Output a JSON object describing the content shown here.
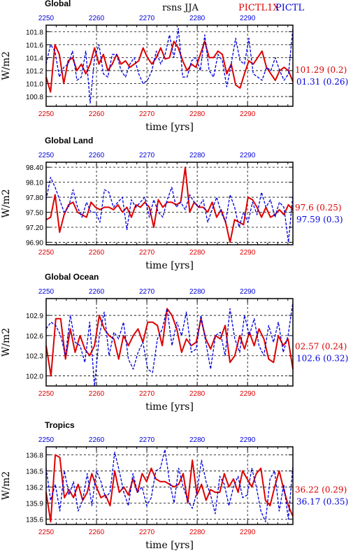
{
  "header": {
    "title": "rsns JJA",
    "legend_red": "PICTL1X",
    "legend_blue": "PICTL"
  },
  "colors": {
    "red": "#dd0000",
    "blue": "#0000dd",
    "grid": "#000000"
  },
  "chart_data": [
    {
      "type": "line",
      "title": "Global",
      "xlabel": "time [yrs]",
      "ylabel": "W/m2",
      "xlim": [
        2250,
        2299
      ],
      "ylim": [
        100.65,
        101.9
      ],
      "x_ticks": [
        2250,
        2260,
        2270,
        2280,
        2290
      ],
      "y_ticks": [
        "100.8",
        "101.0",
        "101.2",
        "101.4",
        "101.6",
        "101.8"
      ],
      "grid": "dashed",
      "stats_red": "101.29 (0.2)",
      "stats_blue": "01.31 (0.26)",
      "series": [
        {
          "name": "PICTL1X",
          "color": "red",
          "style": "solid",
          "values": [
            101.1,
            100.87,
            101.6,
            101.45,
            101.0,
            101.35,
            101.4,
            101.2,
            101.3,
            101.15,
            101.3,
            101.55,
            101.3,
            101.45,
            101.2,
            101.3,
            101.45,
            101.3,
            101.35,
            101.25,
            101.3,
            101.35,
            101.55,
            101.4,
            101.3,
            101.4,
            101.55,
            101.38,
            101.4,
            101.65,
            101.55,
            101.35,
            101.2,
            101.3,
            101.25,
            101.45,
            101.65,
            101.4,
            101.4,
            101.5,
            101.45,
            101.15,
            101.3,
            100.98,
            100.93,
            101.15,
            101.35,
            101.3,
            101.4,
            101.5,
            101.25,
            101.15,
            101.05,
            101.2,
            101.25,
            101.2,
            101.03
          ]
        },
        {
          "name": "PICTL",
          "color": "blue",
          "style": "dashed",
          "values": [
            101.3,
            101.6,
            101.5,
            101.1,
            101.25,
            101.3,
            101.5,
            101.05,
            101.1,
            101.5,
            100.7,
            101.4,
            101.6,
            101.15,
            101.1,
            101.45,
            101.45,
            101.2,
            101.1,
            101.3,
            101.4,
            101.15,
            101.0,
            101.05,
            101.2,
            101.5,
            101.3,
            101.45,
            101.75,
            101.4,
            101.85,
            101.1,
            101.1,
            101.35,
            101.4,
            101.2,
            101.75,
            101.2,
            101.1,
            101.45,
            101.35,
            100.95,
            101.3,
            101.7,
            101.35,
            101.3,
            101.7,
            101.15,
            101.1,
            101.05,
            101.25,
            101.2,
            101.4,
            101.2,
            101.05,
            101.15,
            101.85
          ]
        }
      ]
    },
    {
      "type": "line",
      "title": "Global Land",
      "xlabel": "time [yrs]",
      "ylabel": "W/m2",
      "xlim": [
        2250,
        2299
      ],
      "ylim": [
        96.85,
        98.5
      ],
      "x_ticks": [
        2250,
        2260,
        2270,
        2280,
        2290
      ],
      "y_ticks": [
        "96.90",
        "97.20",
        "97.50",
        "97.80",
        "98.10",
        "98.40"
      ],
      "grid": "dashed",
      "stats_red": "97.6 (0.25)",
      "stats_blue": "97.59 (0.3)",
      "series": [
        {
          "name": "PICTL1X",
          "color": "red",
          "style": "solid",
          "values": [
            97.35,
            97.4,
            97.85,
            97.1,
            97.45,
            97.65,
            97.7,
            97.5,
            97.45,
            97.4,
            97.7,
            97.6,
            97.55,
            97.6,
            97.6,
            97.55,
            97.65,
            97.5,
            97.6,
            97.4,
            97.65,
            97.6,
            97.7,
            97.6,
            97.2,
            97.75,
            97.6,
            97.7,
            97.7,
            97.65,
            97.7,
            98.4,
            97.5,
            97.7,
            97.6,
            97.6,
            97.5,
            97.7,
            97.4,
            97.55,
            97.3,
            96.9,
            97.35,
            97.3,
            97.25,
            97.8,
            97.75,
            97.6,
            97.4,
            97.6,
            97.4,
            97.45,
            97.55,
            97.45,
            97.65,
            97.55
          ]
        },
        {
          "name": "PICTL",
          "color": "blue",
          "style": "dashed",
          "values": [
            97.75,
            98.2,
            98.0,
            97.75,
            97.5,
            97.6,
            97.95,
            97.6,
            97.4,
            97.7,
            97.5,
            97.5,
            97.3,
            97.95,
            97.9,
            97.6,
            97.7,
            97.8,
            97.15,
            97.75,
            97.6,
            97.7,
            97.8,
            97.4,
            97.75,
            97.5,
            97.4,
            97.75,
            98.0,
            97.6,
            97.7,
            97.55,
            97.85,
            97.7,
            97.6,
            97.75,
            97.3,
            97.55,
            97.8,
            97.5,
            97.3,
            97.85,
            97.6,
            97.2,
            97.5,
            97.3,
            97.7,
            97.45,
            97.9,
            97.6,
            97.75,
            97.4,
            97.7,
            97.6,
            96.9,
            97.85
          ]
        }
      ]
    },
    {
      "type": "line",
      "title": "Global Ocean",
      "xlabel": "time [yrs]",
      "ylabel": "W/m2",
      "xlim": [
        2250,
        2299
      ],
      "ylim": [
        101.85,
        103.15
      ],
      "x_ticks": [
        2250,
        2260,
        2270,
        2280,
        2290
      ],
      "y_ticks": [
        "102.0",
        "102.3",
        "102.6",
        "102.9"
      ],
      "grid": "dashed",
      "stats_red": "02.57 (0.24)",
      "stats_blue": "102.6 (0.32)",
      "series": [
        {
          "name": "PICTL1X",
          "color": "red",
          "style": "solid",
          "values": [
            102.45,
            102.0,
            102.85,
            102.85,
            102.25,
            102.7,
            102.35,
            102.6,
            102.4,
            102.3,
            102.45,
            102.9,
            102.7,
            102.6,
            102.55,
            102.25,
            102.6,
            102.45,
            102.6,
            102.7,
            102.5,
            102.8,
            102.8,
            102.75,
            102.45,
            103.0,
            102.9,
            102.7,
            102.35,
            102.55,
            102.45,
            102.5,
            102.85,
            102.55,
            102.4,
            102.6,
            102.55,
            102.75,
            102.2,
            102.3,
            102.6,
            102.4,
            102.65,
            102.45,
            102.7,
            102.55,
            102.25,
            102.2,
            102.6,
            102.45,
            102.55,
            102.1
          ]
        },
        {
          "name": "PICTL",
          "color": "blue",
          "style": "dashed",
          "values": [
            102.7,
            102.8,
            102.75,
            102.6,
            102.3,
            102.9,
            102.5,
            102.45,
            102.2,
            102.8,
            101.85,
            102.6,
            102.95,
            102.3,
            102.65,
            102.55,
            102.8,
            102.25,
            102.1,
            102.35,
            102.5,
            102.1,
            102.05,
            102.55,
            102.7,
            103.0,
            102.45,
            102.8,
            102.6,
            102.95,
            102.35,
            102.4,
            102.9,
            102.5,
            102.1,
            102.6,
            102.65,
            102.3,
            103.0,
            102.55,
            102.35,
            102.9,
            102.6,
            102.85,
            102.45,
            102.3,
            102.75,
            102.5,
            102.8,
            102.35,
            102.6,
            103.1
          ]
        }
      ]
    },
    {
      "type": "line",
      "title": "Tropics",
      "xlabel": "time [yrs]",
      "ylabel": "W/m2",
      "xlim": [
        2250,
        2299
      ],
      "ylim": [
        135.5,
        136.95
      ],
      "x_ticks": [
        2250,
        2260,
        2270,
        2280,
        2290
      ],
      "y_ticks": [
        "135.6",
        "135.9",
        "136.2",
        "136.5",
        "136.8"
      ],
      "grid": "dashed",
      "stats_red": "36.22 (0.29)",
      "stats_blue": "36.17 (0.35)",
      "series": [
        {
          "name": "PICTL1X",
          "color": "red",
          "style": "solid",
          "values": [
            136.1,
            135.55,
            136.8,
            136.75,
            136.0,
            136.15,
            136.0,
            136.25,
            135.95,
            136.1,
            136.45,
            136.2,
            136.0,
            136.05,
            135.85,
            136.5,
            136.1,
            136.2,
            136.05,
            136.35,
            136.1,
            136.45,
            136.3,
            136.55,
            136.35,
            136.3,
            136.3,
            136.25,
            136.2,
            136.25,
            136.45,
            135.9,
            136.7,
            136.05,
            136.25,
            135.95,
            136.15,
            136.1,
            136.1,
            136.45,
            136.2,
            136.35,
            136.1,
            136.5,
            136.35,
            136.2,
            136.45,
            136.55,
            135.95,
            135.85,
            136.2,
            136.5,
            136.15,
            135.85,
            135.65
          ]
        },
        {
          "name": "PICTL",
          "color": "blue",
          "style": "dashed",
          "values": [
            136.55,
            135.95,
            136.25,
            135.75,
            136.5,
            136.05,
            136.3,
            135.75,
            135.95,
            136.45,
            135.85,
            136.5,
            136.3,
            136.0,
            136.1,
            136.85,
            136.5,
            136.1,
            135.85,
            136.45,
            136.1,
            136.2,
            135.85,
            136.0,
            136.5,
            136.55,
            136.9,
            136.3,
            135.9,
            136.55,
            136.2,
            135.95,
            135.8,
            136.1,
            136.7,
            136.3,
            136.05,
            135.7,
            136.4,
            136.25,
            135.85,
            136.2,
            136.4,
            136.0,
            136.05,
            136.55,
            136.2,
            135.75,
            135.55,
            136.35,
            136.5,
            135.75,
            136.25,
            135.6,
            136.6
          ]
        }
      ]
    }
  ]
}
